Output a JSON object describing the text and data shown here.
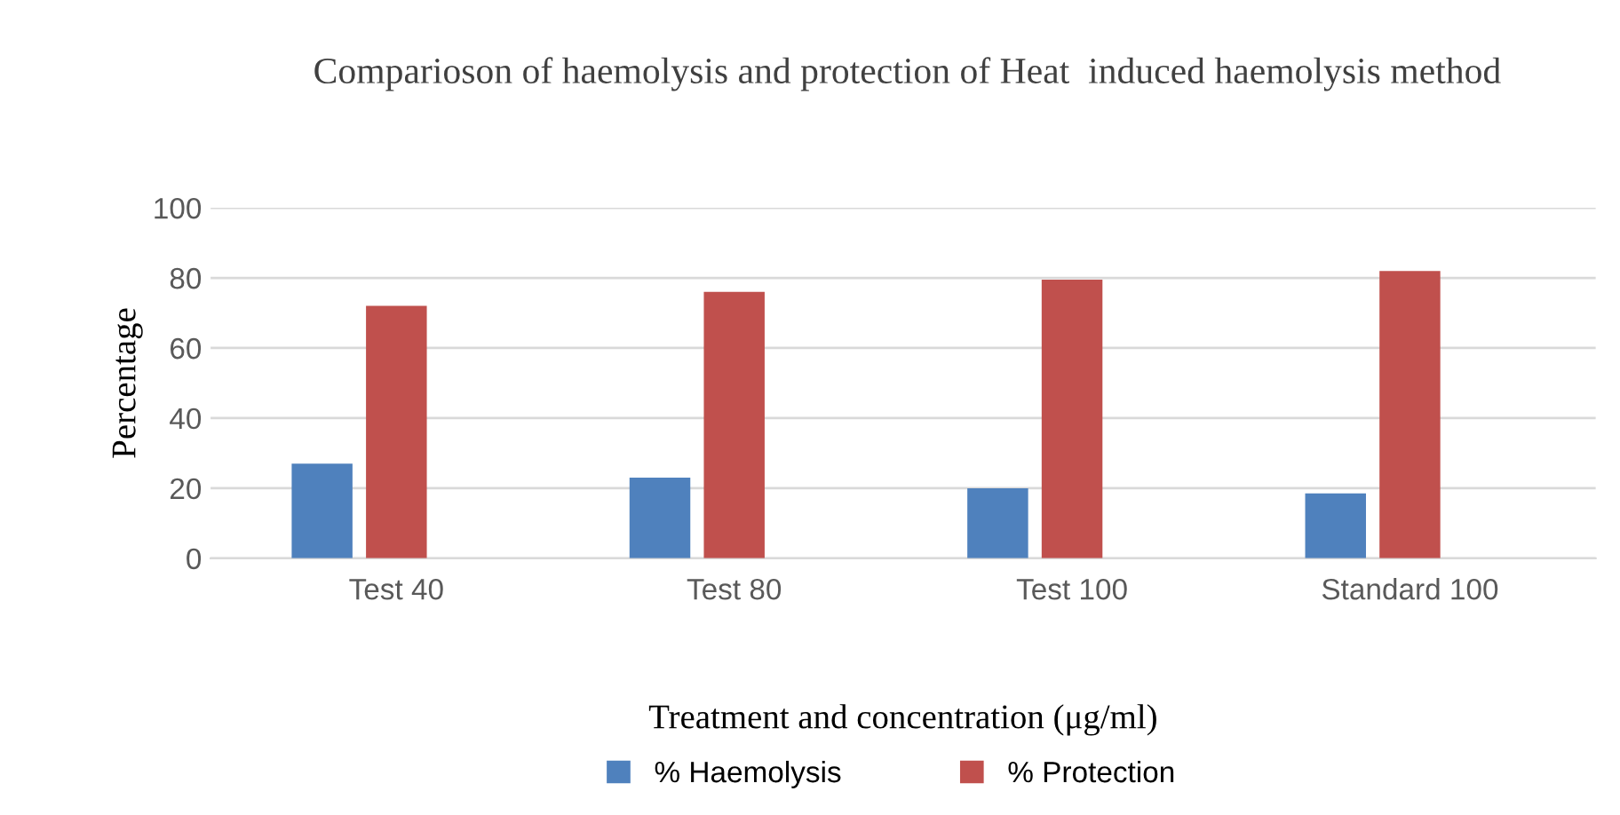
{
  "chart_data": {
    "type": "bar",
    "title": "Comparioson of haemolysis and protection of Heat  induced haemolysis method",
    "xlabel": "Treatment and concentration (μg/ml)",
    "ylabel": "Percentage",
    "categories": [
      "Test 40",
      "Test 80",
      "Test 100",
      "Standard 100"
    ],
    "series": [
      {
        "name": "% Haemolysis",
        "color": "#4f81bd",
        "values": [
          27,
          23,
          20,
          18.5
        ]
      },
      {
        "name": "% Protection",
        "color": "#c0504d",
        "values": [
          72,
          76,
          79.5,
          82
        ]
      }
    ],
    "ylim": [
      0,
      100
    ],
    "yticks": [
      0,
      20,
      40,
      60,
      80,
      100
    ],
    "grid": "y",
    "legend": "bottom"
  }
}
